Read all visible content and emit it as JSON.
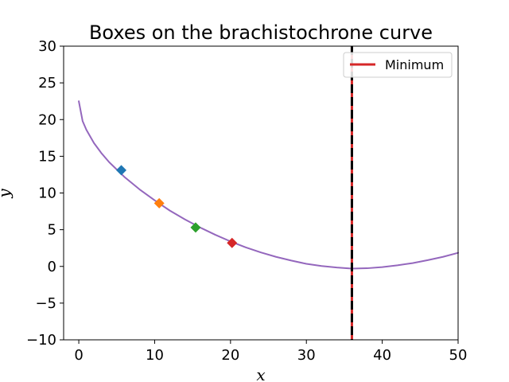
{
  "chart_data": {
    "type": "line",
    "title": "Boxes on the brachistochrone curve",
    "xlabel": "x",
    "ylabel": "y",
    "xlim": [
      -2,
      50
    ],
    "ylim": [
      -10,
      30
    ],
    "x_ticks": [
      0,
      10,
      20,
      30,
      40,
      50
    ],
    "y_ticks": [
      -10,
      -5,
      0,
      5,
      10,
      15,
      20,
      25,
      30
    ],
    "x_tick_labels": [
      "0",
      "10",
      "20",
      "30",
      "40",
      "50"
    ],
    "y_tick_labels": [
      "−10",
      "−5",
      "0",
      "5",
      "10",
      "15",
      "20",
      "25",
      "30"
    ],
    "grid": false,
    "legend_position": "top-right",
    "curve": {
      "color": "#9467bd",
      "x": [
        0,
        0.5,
        1,
        2,
        3,
        4,
        5,
        6,
        8,
        10,
        12,
        14,
        16,
        18,
        20,
        22,
        24,
        26,
        28,
        30,
        32,
        34,
        36,
        38,
        40,
        42,
        44,
        46,
        48,
        50
      ],
      "y": [
        22.5,
        19.8,
        18.6,
        16.8,
        15.4,
        14.2,
        13.2,
        12.2,
        10.5,
        9.0,
        7.6,
        6.4,
        5.3,
        4.3,
        3.4,
        2.6,
        1.9,
        1.3,
        0.8,
        0.35,
        0.05,
        -0.15,
        -0.3,
        -0.25,
        -0.1,
        0.15,
        0.45,
        0.85,
        1.3,
        1.85
      ]
    },
    "boxes": [
      {
        "x": 5.6,
        "y": 13.1,
        "color": "#1f77b4"
      },
      {
        "x": 10.6,
        "y": 8.6,
        "color": "#ff7f0e"
      },
      {
        "x": 15.4,
        "y": 5.3,
        "color": "#2ca02c"
      },
      {
        "x": 20.2,
        "y": 3.2,
        "color": "#d62728"
      }
    ],
    "minimum": {
      "x": 36,
      "label": "Minimum",
      "color": "#d62728",
      "dash_color": "#000000"
    }
  }
}
